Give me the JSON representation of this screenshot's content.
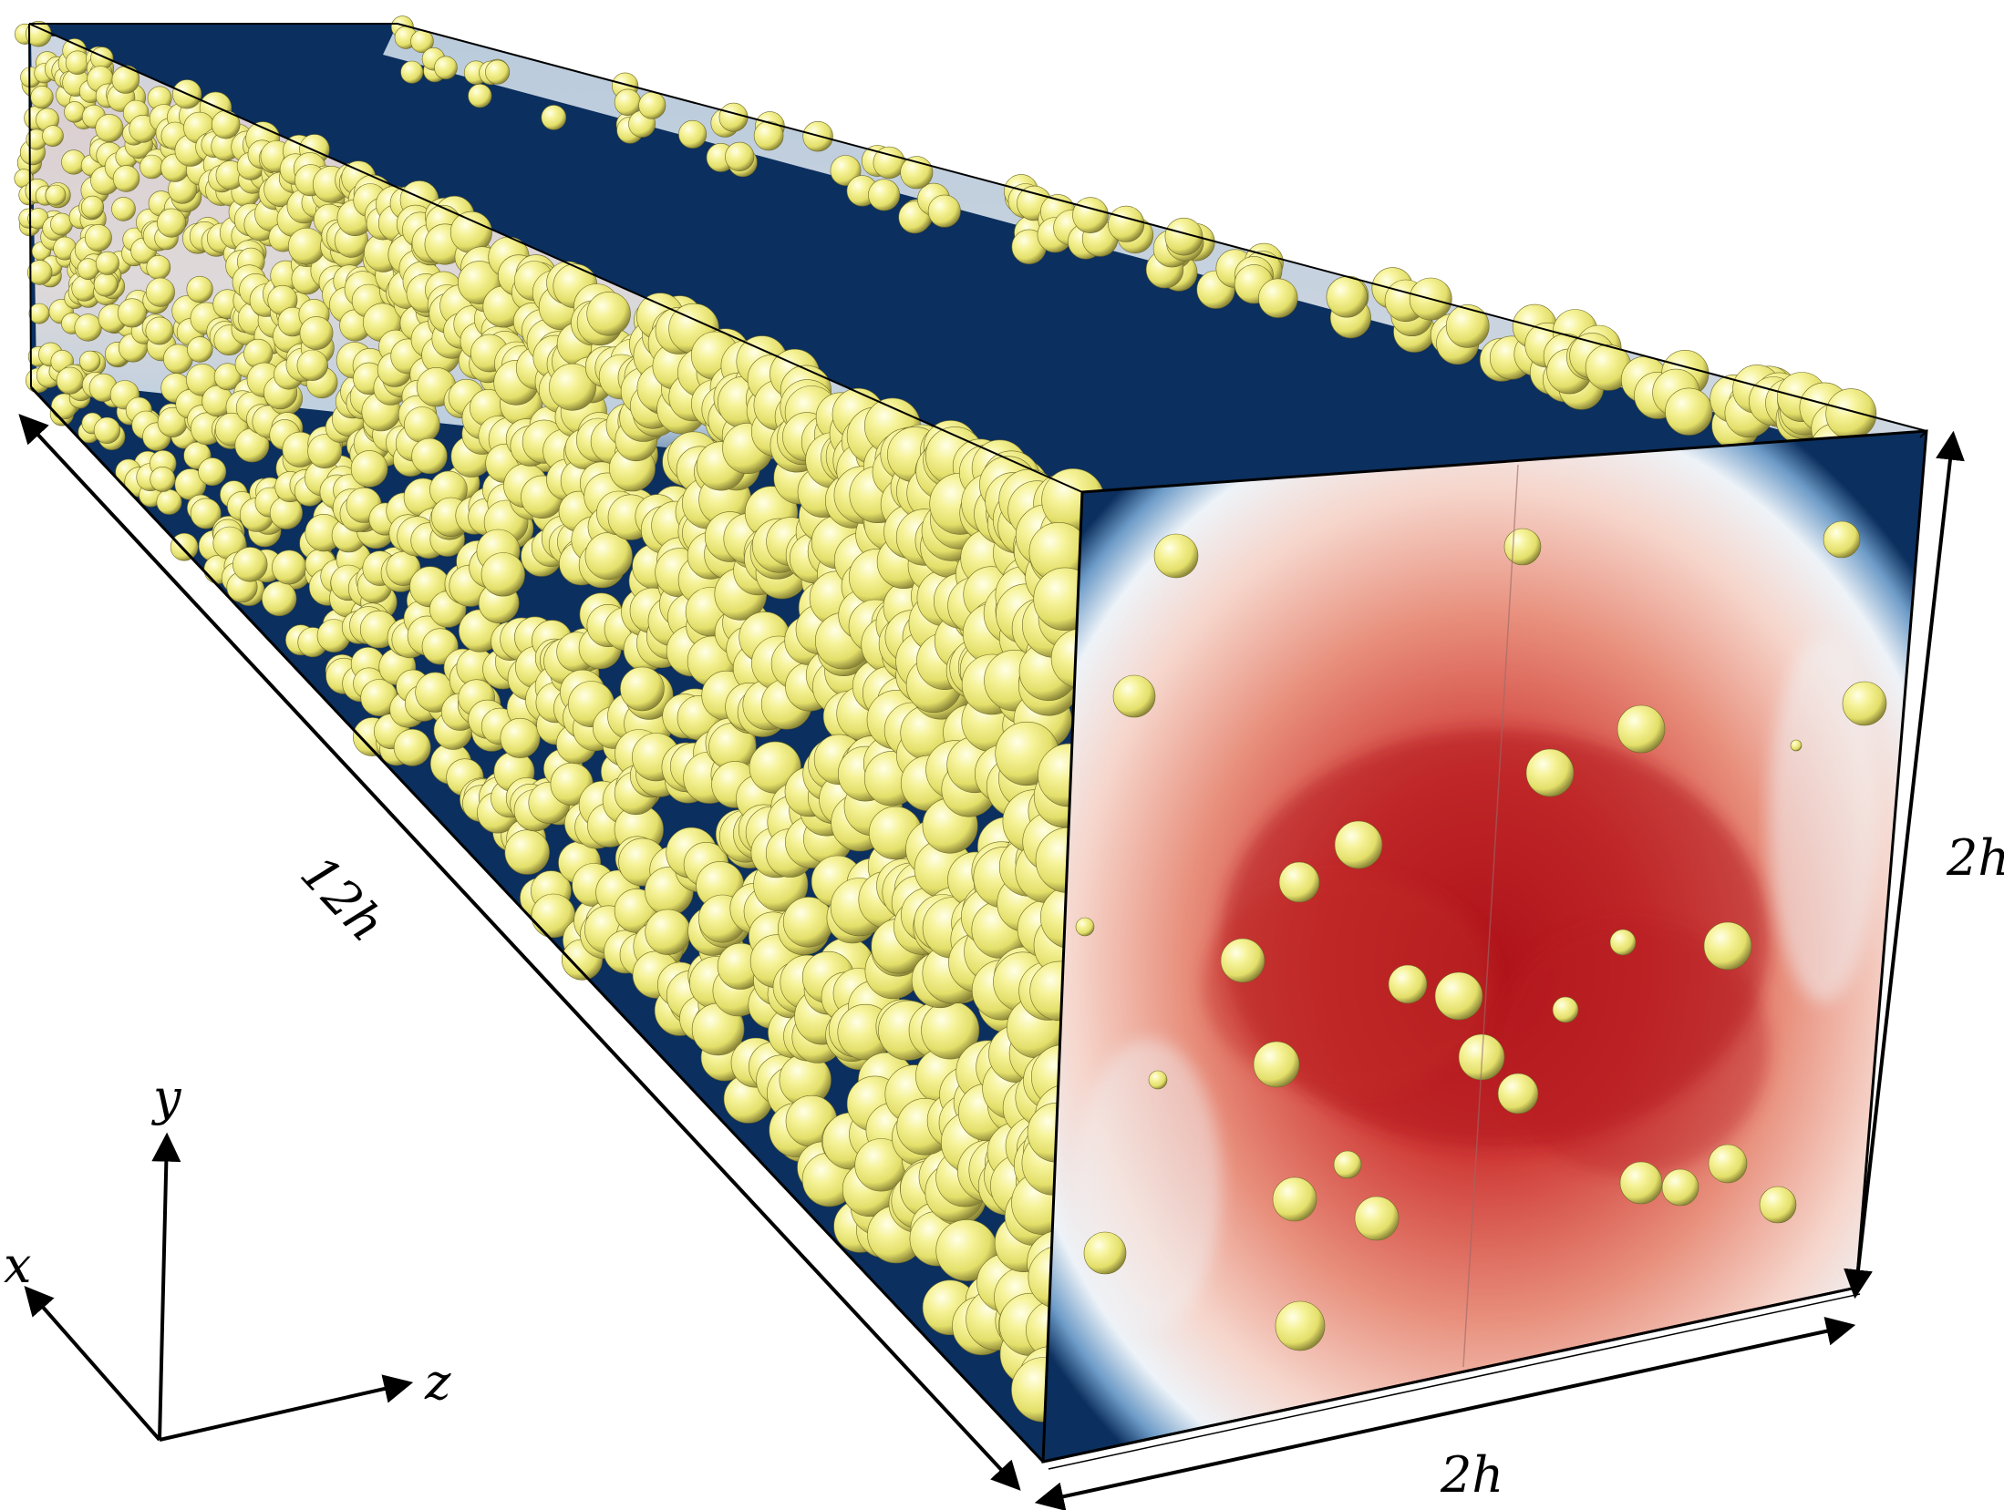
{
  "dimensions": {
    "length": "12h",
    "height": "2h",
    "width": "2h"
  },
  "axes": {
    "x": "x",
    "y": "y",
    "z": "z"
  },
  "colors": {
    "particles": "#f3f08a",
    "wall_low_velocity": "#0b2f5e",
    "mid_velocity": "#f4f2f0",
    "core_high_velocity": "#b3141c",
    "outline": "#000000"
  }
}
